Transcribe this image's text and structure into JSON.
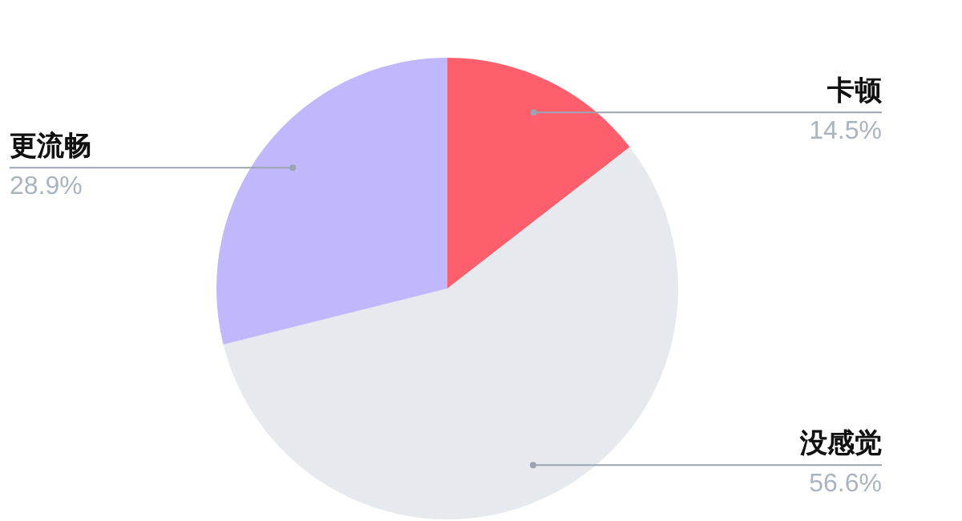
{
  "chart_data": {
    "type": "pie",
    "categories": [
      "卡顿",
      "没感觉",
      "更流畅"
    ],
    "values": [
      14.5,
      56.6,
      28.9
    ],
    "colors": [
      "#ff5f6d",
      "#e6eaee",
      "#c1b7fc"
    ],
    "value_labels": [
      "14.5%",
      "56.6%",
      "28.9%"
    ],
    "legend": false
  }
}
